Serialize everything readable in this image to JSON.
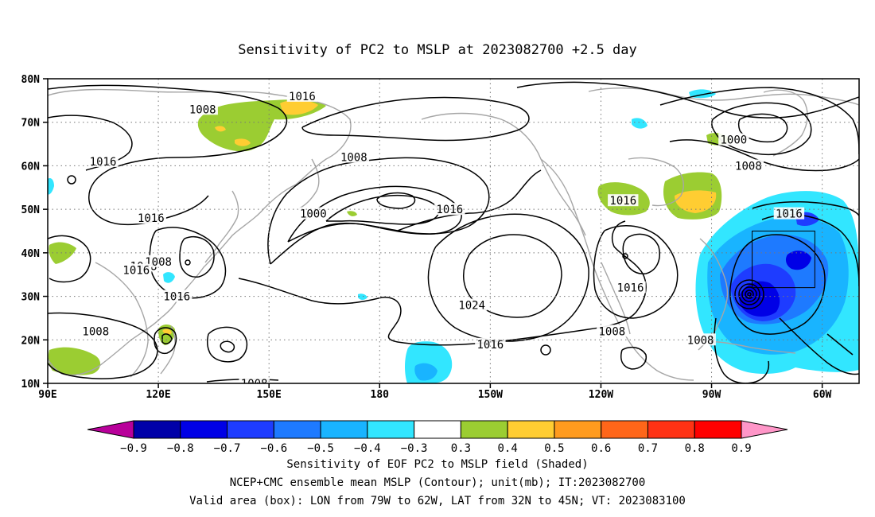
{
  "title": "Sensitivity of PC2 to MSLP at 2023082700 +2.5 day",
  "map": {
    "lat_labels": [
      "80N",
      "70N",
      "60N",
      "50N",
      "40N",
      "30N",
      "20N",
      "10N"
    ],
    "lon_labels": [
      "90E",
      "120E",
      "150E",
      "180",
      "150W",
      "120W",
      "90W",
      "60W"
    ],
    "lat_range": [
      10,
      80
    ],
    "lon_range_east": [
      90,
      310
    ],
    "gridlines": "dotted",
    "contour_interval_mb": 8
  },
  "valid_box": {
    "lon": [
      "79W",
      "62W"
    ],
    "lat": [
      "32N",
      "45N"
    ]
  },
  "contour_labels": [
    {
      "text": "1008",
      "lon": 132,
      "lat": 73
    },
    {
      "text": "1016",
      "lon": 159,
      "lat": 76
    },
    {
      "text": "1000",
      "lon": 276,
      "lat": 66
    },
    {
      "text": "1008",
      "lon": 280,
      "lat": 60
    },
    {
      "text": "1016",
      "lon": 105,
      "lat": 61
    },
    {
      "text": "1008",
      "lon": 173,
      "lat": 62
    },
    {
      "text": "1000",
      "lon": 162,
      "lat": 49
    },
    {
      "text": "1016",
      "lon": 199,
      "lat": 50
    },
    {
      "text": "1016",
      "lon": 246,
      "lat": 52
    },
    {
      "text": "1016",
      "lon": 291,
      "lat": 49
    },
    {
      "text": "1016",
      "lon": 118,
      "lat": 48
    },
    {
      "text": "1008",
      "lon": 116,
      "lat": 37
    },
    {
      "text": "1008",
      "lon": 120,
      "lat": 38
    },
    {
      "text": "1016",
      "lon": 114,
      "lat": 36
    },
    {
      "text": "1016",
      "lon": 125,
      "lat": 30
    },
    {
      "text": "1024",
      "lon": 205,
      "lat": 28
    },
    {
      "text": "1016",
      "lon": 248,
      "lat": 32
    },
    {
      "text": "1008",
      "lon": 243,
      "lat": 22
    },
    {
      "text": "1008",
      "lon": 267,
      "lat": 20
    },
    {
      "text": "1016",
      "lon": 210,
      "lat": 19
    },
    {
      "text": "1008",
      "lon": 103,
      "lat": 22
    },
    {
      "text": "1008",
      "lon": 146,
      "lat": 10
    }
  ],
  "colorbar": {
    "labels": [
      "-0.9",
      "-0.8",
      "-0.7",
      "-0.6",
      "-0.5",
      "-0.4",
      "-0.3",
      "0.3",
      "0.4",
      "0.5",
      "0.6",
      "0.7",
      "0.8",
      "0.9"
    ],
    "colors": [
      "#b8009a",
      "#0000a8",
      "#0000e6",
      "#1e3cff",
      "#1e7aff",
      "#19b4ff",
      "#32e6ff",
      "#ffffff",
      "#9bcd32",
      "#ffcd32",
      "#ff9b1e",
      "#ff6619",
      "#ff3214",
      "#ff0000",
      "#ff96c8"
    ]
  },
  "captions": {
    "line1": "Sensitivity of EOF PC2 to MSLP field (Shaded)",
    "line2": "NCEP+CMC ensemble mean MSLP (Contour); unit(mb); IT:2023082700",
    "line3": "Valid area (box): LON from 79W to 62W, LAT from 32N to 45N; VT: 2023083100"
  }
}
